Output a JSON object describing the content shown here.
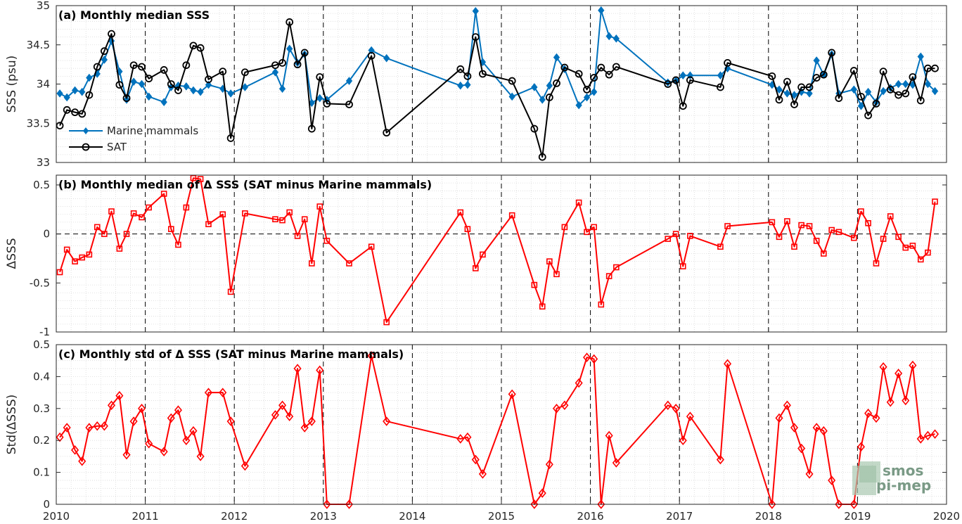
{
  "chart_data": [
    {
      "type": "line",
      "title": "(a) Monthly median SSS",
      "ylabel": "SSS (psu)",
      "xlim": [
        2010,
        2020
      ],
      "ylim": [
        33,
        35
      ],
      "yticks": [
        33,
        33.5,
        34,
        34.5,
        35
      ],
      "ytick_labels": [
        "33",
        "33.5",
        "34",
        "34.5",
        "35"
      ],
      "grid": true,
      "legend_position": "bottom-left",
      "series": [
        {
          "name": "Marine mammals",
          "color": "#0072bd",
          "marker": "diamond-filled",
          "x": [
            2010.04,
            2010.12,
            2010.21,
            2010.29,
            2010.37,
            2010.46,
            2010.54,
            2010.62,
            2010.71,
            2010.79,
            2010.87,
            2010.96,
            2011.04,
            2011.21,
            2011.29,
            2011.37,
            2011.46,
            2011.54,
            2011.62,
            2011.71,
            2011.87,
            2011.96,
            2012.12,
            2012.46,
            2012.54,
            2012.62,
            2012.71,
            2012.79,
            2012.87,
            2012.96,
            2013.04,
            2013.29,
            2013.54,
            2013.71,
            2014.54,
            2014.62,
            2014.71,
            2014.79,
            2015.12,
            2015.37,
            2015.46,
            2015.54,
            2015.62,
            2015.71,
            2015.87,
            2015.96,
            2016.04,
            2016.12,
            2016.21,
            2016.29,
            2016.87,
            2016.96,
            2017.04,
            2017.12,
            2017.46,
            2017.54,
            2018.04,
            2018.12,
            2018.21,
            2018.29,
            2018.37,
            2018.46,
            2018.54,
            2018.62,
            2018.71,
            2018.79,
            2018.96,
            2019.04,
            2019.12,
            2019.21,
            2019.29,
            2019.37,
            2019.46,
            2019.54,
            2019.62,
            2019.71,
            2019.79
          ],
          "values": [
            33.88,
            33.83,
            33.92,
            33.9,
            34.08,
            34.13,
            34.31,
            34.55,
            34.16,
            33.8,
            34.03,
            34.0,
            33.84,
            33.77,
            33.96,
            33.98,
            33.97,
            33.92,
            33.9,
            33.99,
            33.94,
            33.88,
            33.96,
            34.15,
            33.94,
            34.45,
            34.27,
            34.38,
            33.76,
            33.82,
            33.8,
            34.04,
            34.43,
            34.33,
            33.98,
            33.99,
            34.93,
            34.28,
            33.84,
            33.96,
            33.8,
            33.98,
            34.34,
            34.19,
            33.73,
            33.83,
            33.9,
            34.94,
            34.61,
            34.58,
            34.02,
            34.04,
            34.11,
            34.11,
            34.11,
            34.2,
            33.99,
            33.93,
            33.88,
            33.86,
            33.9,
            33.88,
            34.3,
            34.12,
            34.38,
            33.88,
            33.93,
            33.72,
            33.9,
            33.77,
            33.91,
            33.95,
            34.0,
            34.0,
            33.99,
            34.35,
            34.0
          ],
          "extra_x": [
            2019.87
          ],
          "extra_values": [
            33.91
          ]
        },
        {
          "name": "SAT",
          "color": "#000000",
          "marker": "circle-open",
          "x": [
            2010.04,
            2010.12,
            2010.21,
            2010.29,
            2010.37,
            2010.46,
            2010.54,
            2010.62,
            2010.71,
            2010.79,
            2010.87,
            2010.96,
            2011.04,
            2011.21,
            2011.29,
            2011.37,
            2011.46,
            2011.54,
            2011.62,
            2011.71,
            2011.87,
            2011.96,
            2012.12,
            2012.46,
            2012.54,
            2012.62,
            2012.71,
            2012.79,
            2012.87,
            2012.96,
            2013.04,
            2013.29,
            2013.54,
            2013.71,
            2014.54,
            2014.62,
            2014.71,
            2014.79,
            2015.12,
            2015.37,
            2015.46,
            2015.54,
            2015.62,
            2015.71,
            2015.87,
            2015.96,
            2016.04,
            2016.12,
            2016.21,
            2016.29,
            2016.87,
            2016.96,
            2017.04,
            2017.12,
            2017.46,
            2017.54,
            2018.04,
            2018.12,
            2018.21,
            2018.29,
            2018.37,
            2018.46,
            2018.54,
            2018.62,
            2018.71,
            2018.79,
            2018.96,
            2019.04,
            2019.12,
            2019.21,
            2019.29,
            2019.37,
            2019.46,
            2019.54,
            2019.62,
            2019.71,
            2019.79,
            2019.87
          ],
          "values": [
            33.47,
            33.67,
            33.64,
            33.62,
            33.86,
            34.22,
            34.42,
            34.64,
            33.99,
            33.82,
            34.24,
            34.22,
            34.07,
            34.18,
            34.0,
            33.92,
            34.24,
            34.49,
            34.46,
            34.06,
            34.16,
            33.31,
            34.15,
            34.24,
            34.27,
            34.79,
            34.25,
            34.4,
            33.43,
            34.09,
            33.75,
            33.74,
            34.36,
            33.38,
            34.19,
            34.1,
            34.6,
            34.13,
            34.04,
            33.43,
            33.07,
            33.83,
            34.01,
            34.21,
            34.13,
            33.93,
            34.08,
            34.21,
            34.12,
            34.22,
            34.0,
            34.05,
            33.72,
            34.05,
            33.96,
            34.27,
            34.1,
            33.8,
            34.03,
            33.74,
            33.96,
            33.96,
            34.08,
            34.12,
            34.4,
            33.82,
            34.17,
            33.84,
            33.6,
            33.75,
            34.16,
            33.93,
            33.86,
            33.88,
            34.09,
            33.79,
            34.2,
            34.2
          ]
        }
      ]
    },
    {
      "type": "line",
      "title": "(b) Monthly median of Δ SSS (SAT minus Marine mammals)",
      "ylabel": "ΔSSS",
      "xlim": [
        2010,
        2020
      ],
      "ylim": [
        -1,
        0.6
      ],
      "yticks": [
        -1,
        -0.5,
        0,
        0.5
      ],
      "ytick_labels": [
        "-1",
        "-0.5",
        "0",
        "0.5"
      ],
      "grid": true,
      "series": [
        {
          "color": "#ff0000",
          "marker": "square-open",
          "x": [
            2010.04,
            2010.12,
            2010.21,
            2010.29,
            2010.37,
            2010.46,
            2010.54,
            2010.62,
            2010.71,
            2010.79,
            2010.87,
            2010.96,
            2011.04,
            2011.21,
            2011.29,
            2011.37,
            2011.46,
            2011.54,
            2011.62,
            2011.71,
            2011.87,
            2011.96,
            2012.12,
            2012.46,
            2012.54,
            2012.62,
            2012.71,
            2012.79,
            2012.87,
            2012.96,
            2013.04,
            2013.29,
            2013.54,
            2013.71,
            2014.54,
            2014.62,
            2014.71,
            2014.79,
            2015.12,
            2015.37,
            2015.46,
            2015.54,
            2015.62,
            2015.71,
            2015.87,
            2015.96,
            2016.04,
            2016.12,
            2016.21,
            2016.29,
            2016.87,
            2016.96,
            2017.04,
            2017.12,
            2017.46,
            2017.54,
            2018.04,
            2018.12,
            2018.21,
            2018.29,
            2018.37,
            2018.46,
            2018.54,
            2018.62,
            2018.71,
            2018.79,
            2018.96,
            2019.04,
            2019.12,
            2019.21,
            2019.29,
            2019.37,
            2019.46,
            2019.54,
            2019.62,
            2019.71,
            2019.79,
            2019.87
          ],
          "values": [
            -0.39,
            -0.16,
            -0.28,
            -0.24,
            -0.21,
            0.07,
            0.0,
            0.23,
            -0.15,
            0.0,
            0.21,
            0.17,
            0.27,
            0.41,
            0.05,
            -0.11,
            0.27,
            0.57,
            0.56,
            0.1,
            0.2,
            -0.59,
            0.21,
            0.15,
            0.14,
            0.22,
            -0.02,
            0.15,
            -0.3,
            0.28,
            -0.07,
            -0.3,
            -0.13,
            -0.9,
            0.22,
            0.05,
            -0.35,
            -0.21,
            0.19,
            -0.52,
            -0.74,
            -0.28,
            -0.41,
            0.07,
            0.32,
            0.02,
            0.07,
            -0.72,
            -0.43,
            -0.34,
            -0.05,
            0.0,
            -0.33,
            -0.02,
            -0.13,
            0.08,
            0.12,
            -0.03,
            0.13,
            -0.13,
            0.09,
            0.08,
            -0.07,
            -0.2,
            0.04,
            0.02,
            -0.04,
            0.23,
            0.11,
            -0.3,
            -0.05,
            0.18,
            -0.03,
            -0.14,
            -0.12,
            -0.26,
            -0.19,
            0.33
          ]
        }
      ]
    },
    {
      "type": "line",
      "title": "(c) Monthly std of Δ SSS (SAT minus Marine mammals)",
      "ylabel": "Std(ΔSSS)",
      "xlim": [
        2010,
        2020
      ],
      "ylim": [
        0,
        0.5
      ],
      "yticks": [
        0,
        0.1,
        0.2,
        0.3,
        0.4,
        0.5
      ],
      "ytick_labels": [
        "0",
        "0.1",
        "0.2",
        "0.3",
        "0.4",
        "0.5"
      ],
      "xticks": [
        2010,
        2011,
        2012,
        2013,
        2014,
        2015,
        2016,
        2017,
        2018,
        2019,
        2020
      ],
      "xtick_labels": [
        "2010",
        "2011",
        "2012",
        "2013",
        "2014",
        "2015",
        "2016",
        "2017",
        "2018",
        "2019",
        "2020"
      ],
      "grid": true,
      "series": [
        {
          "color": "#ff0000",
          "marker": "diamond-open",
          "x": [
            2010.04,
            2010.12,
            2010.21,
            2010.29,
            2010.37,
            2010.46,
            2010.54,
            2010.62,
            2010.71,
            2010.79,
            2010.87,
            2010.96,
            2011.04,
            2011.21,
            2011.29,
            2011.37,
            2011.46,
            2011.54,
            2011.62,
            2011.71,
            2011.87,
            2011.96,
            2012.12,
            2012.46,
            2012.54,
            2012.62,
            2012.71,
            2012.79,
            2012.87,
            2012.96,
            2013.04,
            2013.29,
            2013.54,
            2013.71,
            2014.54,
            2014.62,
            2014.71,
            2014.79,
            2015.12,
            2015.37,
            2015.46,
            2015.54,
            2015.62,
            2015.71,
            2015.87,
            2015.96,
            2016.04,
            2016.12,
            2016.21,
            2016.29,
            2016.87,
            2016.96,
            2017.04,
            2017.12,
            2017.46,
            2017.54,
            2018.04,
            2018.12,
            2018.21,
            2018.29,
            2018.37,
            2018.46,
            2018.54,
            2018.62,
            2018.71,
            2018.79,
            2018.96,
            2019.04,
            2019.12,
            2019.21,
            2019.29,
            2019.37,
            2019.46,
            2019.54,
            2019.62,
            2019.71,
            2019.79,
            2019.87
          ],
          "values": [
            0.21,
            0.24,
            0.17,
            0.135,
            0.24,
            0.245,
            0.245,
            0.31,
            0.34,
            0.155,
            0.26,
            0.3,
            0.19,
            0.165,
            0.27,
            0.295,
            0.2,
            0.23,
            0.15,
            0.35,
            0.35,
            0.26,
            0.12,
            0.28,
            0.31,
            0.275,
            0.425,
            0.24,
            0.26,
            0.42,
            0.0,
            0.0,
            0.465,
            0.26,
            0.205,
            0.21,
            0.14,
            0.095,
            0.345,
            0.0,
            0.035,
            0.125,
            0.3,
            0.31,
            0.38,
            0.46,
            0.455,
            0.0,
            0.215,
            0.13,
            0.31,
            0.3,
            0.2,
            0.275,
            0.14,
            0.44,
            0.0,
            0.27,
            0.31,
            0.24,
            0.175,
            0.095,
            0.24,
            0.23,
            0.075,
            0.0,
            0.0,
            0.18,
            0.285,
            0.27,
            0.43,
            0.32,
            0.41,
            0.325,
            0.435,
            0.205,
            0.215,
            0.22
          ]
        }
      ]
    }
  ],
  "logo": {
    "line1": "smos",
    "line2": "pi-mep"
  }
}
